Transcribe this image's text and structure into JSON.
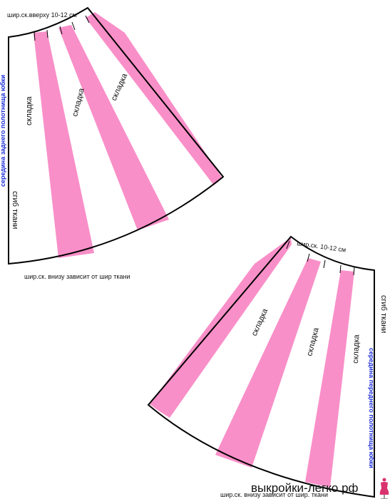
{
  "colors": {
    "pleat_fill": "#f98fc8",
    "outline": "#000000",
    "center_label": "#1d2fd6",
    "watermark": "#111111"
  },
  "back_panel": {
    "top_width_note": "шир.ск.вверху 10-12 см",
    "pleat_labels": [
      "складка",
      "складка",
      "складка"
    ],
    "center_label": "середина заднего полотнища юбки",
    "fold_label": "сгиб ткани",
    "bottom_width_note": "шир.ск. внизу зависит от шир ткани"
  },
  "front_panel": {
    "top_width_note": "шир.ск. 10-12 см",
    "pleat_labels": [
      "складка",
      "складка",
      "складка"
    ],
    "center_label": "середина переднего полотнища юбки",
    "fold_label": "сгиб ткани",
    "bottom_width_note": "шир.ск. внизу зависит от шир. ткани"
  },
  "watermark": {
    "site": "выкройки-легко.рф",
    "logo_icon": "dress-form-icon"
  }
}
